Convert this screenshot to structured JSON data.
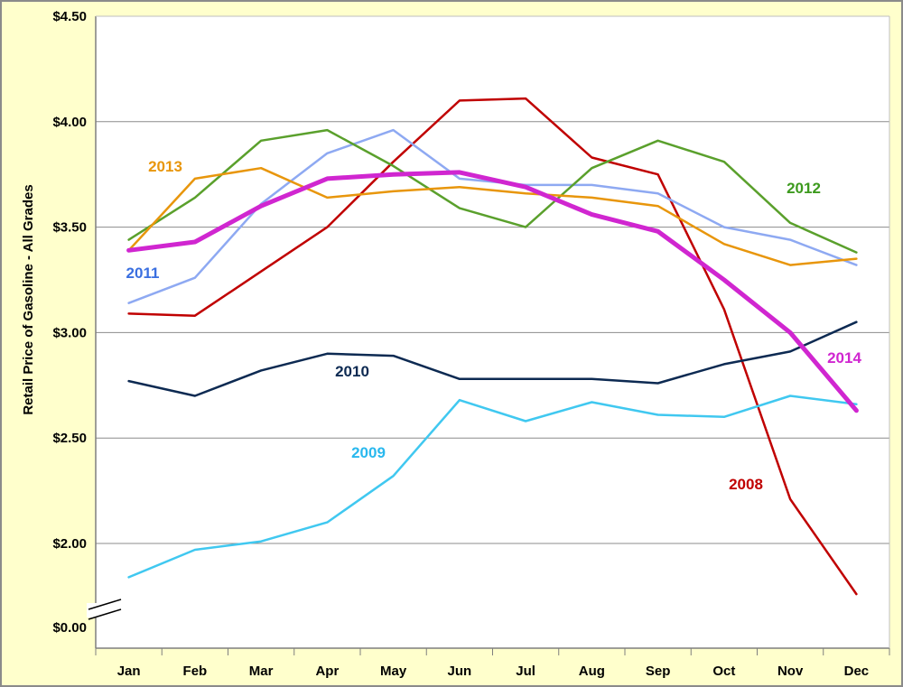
{
  "chart_data": {
    "type": "line",
    "title": "",
    "xlabel": "",
    "ylabel": "Retail Price of Gasoline - All Grades",
    "categories": [
      "Jan",
      "Feb",
      "Mar",
      "Apr",
      "May",
      "Jun",
      "Jul",
      "Aug",
      "Sep",
      "Oct",
      "Nov",
      "Dec"
    ],
    "y_ticks": [
      "$0.00",
      "$2.00",
      "$2.50",
      "$3.00",
      "$3.50",
      "$4.00",
      "$4.50"
    ],
    "ylim": [
      0.0,
      4.5
    ],
    "y_axis_break": "between $0.00 and $2.00",
    "grid": "horizontal",
    "legend": "none (series labeled inline)",
    "series": [
      {
        "name": "2008",
        "color": "#c00000",
        "width": 2.5,
        "values": [
          3.09,
          3.08,
          3.29,
          3.5,
          3.81,
          4.1,
          4.11,
          3.83,
          3.75,
          3.11,
          2.21,
          1.76
        ]
      },
      {
        "name": "2009",
        "color": "#40c8f0",
        "width": 2.5,
        "values": [
          1.84,
          1.97,
          2.01,
          2.1,
          2.32,
          2.68,
          2.58,
          2.67,
          2.61,
          2.6,
          2.7,
          2.66
        ]
      },
      {
        "name": "2010",
        "color": "#0d2a52",
        "width": 2.5,
        "values": [
          2.77,
          2.7,
          2.82,
          2.9,
          2.89,
          2.78,
          2.78,
          2.78,
          2.76,
          2.85,
          2.91,
          3.05
        ]
      },
      {
        "name": "2011",
        "color": "#8ea9f2",
        "width": 2.5,
        "values": [
          3.14,
          3.26,
          3.61,
          3.85,
          3.96,
          3.73,
          3.7,
          3.7,
          3.66,
          3.5,
          3.44,
          3.32
        ]
      },
      {
        "name": "2012",
        "color": "#5aa02c",
        "width": 2.5,
        "values": [
          3.44,
          3.64,
          3.91,
          3.96,
          3.79,
          3.59,
          3.5,
          3.78,
          3.91,
          3.81,
          3.52,
          3.38
        ]
      },
      {
        "name": "2013",
        "color": "#e8960c",
        "width": 2.5,
        "values": [
          3.39,
          3.73,
          3.78,
          3.64,
          3.67,
          3.69,
          3.66,
          3.64,
          3.6,
          3.42,
          3.32,
          3.35
        ]
      },
      {
        "name": "2014",
        "color": "#d026d0",
        "width": 5,
        "values": [
          3.39,
          3.43,
          3.6,
          3.73,
          3.75,
          3.76,
          3.69,
          3.56,
          3.48,
          3.25,
          3.0,
          2.63
        ]
      }
    ],
    "annotations": [
      {
        "text": "2013",
        "color": "#e8960c"
      },
      {
        "text": "2011",
        "color": "#3a6fe0"
      },
      {
        "text": "2012",
        "color": "#3d9a1e"
      },
      {
        "text": "2010",
        "color": "#0d2a52"
      },
      {
        "text": "2014",
        "color": "#d026d0"
      },
      {
        "text": "2009",
        "color": "#29b8ee"
      },
      {
        "text": "2008",
        "color": "#c00000"
      }
    ]
  }
}
